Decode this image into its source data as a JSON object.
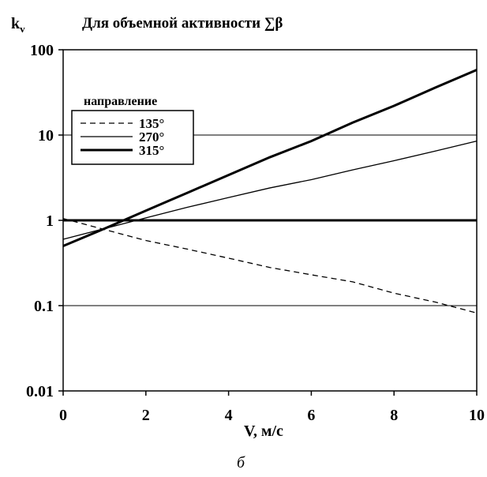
{
  "chart_data": {
    "type": "line",
    "title": "Для объемной активности ∑β",
    "ylabel_main": "k",
    "ylabel_sub": "v",
    "xlabel": "V, м/с",
    "caption": "б",
    "xlim": [
      0,
      10
    ],
    "ylim": [
      0.01,
      100
    ],
    "y_scale": "log",
    "grid": "horizontal",
    "x_ticks": [
      0,
      2,
      4,
      6,
      8,
      10
    ],
    "x_tick_labels": [
      "0",
      "2",
      "4",
      "6",
      "8",
      "10"
    ],
    "y_ticks": [
      0.01,
      0.1,
      1,
      10,
      100
    ],
    "y_tick_labels": [
      "0.01",
      "0.1",
      "1",
      "10",
      "100"
    ],
    "legend": {
      "title": "направление",
      "position": "top-left"
    },
    "reference_line": {
      "y": 1
    },
    "series": [
      {
        "name": "135°",
        "style": "dashed",
        "x": [
          0,
          1,
          2,
          3,
          4,
          5,
          6,
          7,
          8,
          9,
          10
        ],
        "y": [
          1.05,
          0.78,
          0.58,
          0.46,
          0.36,
          0.28,
          0.23,
          0.19,
          0.14,
          0.11,
          0.082
        ]
      },
      {
        "name": "270°",
        "style": "thin",
        "x": [
          0,
          1,
          2,
          3,
          4,
          5,
          6,
          7,
          8,
          9,
          10
        ],
        "y": [
          0.6,
          0.8,
          1.07,
          1.42,
          1.85,
          2.4,
          3.0,
          3.9,
          5.0,
          6.5,
          8.5
        ]
      },
      {
        "name": "315°",
        "style": "thick",
        "x": [
          0,
          1,
          2,
          3,
          4,
          5,
          6,
          7,
          8,
          9,
          10
        ],
        "y": [
          0.5,
          0.8,
          1.3,
          2.1,
          3.4,
          5.5,
          8.5,
          14,
          22,
          36,
          58
        ]
      }
    ]
  }
}
